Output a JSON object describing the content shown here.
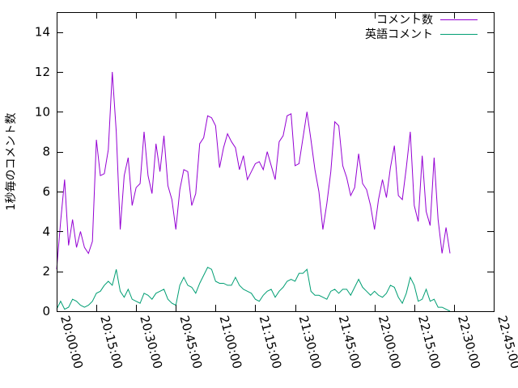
{
  "chart_data": {
    "type": "line",
    "xlabel": "",
    "ylabel": "1秒毎のコメント数",
    "ylim": [
      0,
      15
    ],
    "yticks": [
      0,
      2,
      4,
      6,
      8,
      10,
      12,
      14
    ],
    "xlim": [
      "20:00:00",
      "22:45:00"
    ],
    "xtick_labels": [
      "20:00:00",
      "20:15:00",
      "20:30:00",
      "20:45:00",
      "21:00:00",
      "21:15:00",
      "21:30:00",
      "21:45:00",
      "22:00:00",
      "22:15:00",
      "22:30:00",
      "22:45:00"
    ],
    "legend_position": "top-right",
    "grid": false,
    "series": [
      {
        "name": "コメント数",
        "color": "#9400d3",
        "points": [
          [
            "20:00:00",
            2.1
          ],
          [
            "20:01:30",
            4.5
          ],
          [
            "20:03:00",
            6.6
          ],
          [
            "20:04:30",
            3.3
          ],
          [
            "20:06:00",
            4.6
          ],
          [
            "20:07:30",
            3.2
          ],
          [
            "20:09:00",
            4.0
          ],
          [
            "20:10:30",
            3.2
          ],
          [
            "20:12:00",
            2.9
          ],
          [
            "20:13:30",
            3.5
          ],
          [
            "20:15:00",
            8.6
          ],
          [
            "20:16:30",
            6.8
          ],
          [
            "20:18:00",
            6.9
          ],
          [
            "20:19:30",
            8.1
          ],
          [
            "20:21:00",
            12.0
          ],
          [
            "20:22:30",
            9.0
          ],
          [
            "20:24:00",
            4.1
          ],
          [
            "20:25:30",
            6.8
          ],
          [
            "20:27:00",
            7.7
          ],
          [
            "20:28:30",
            5.3
          ],
          [
            "20:30:00",
            6.2
          ],
          [
            "20:31:30",
            6.4
          ],
          [
            "20:33:00",
            9.0
          ],
          [
            "20:34:30",
            6.8
          ],
          [
            "20:36:00",
            5.9
          ],
          [
            "20:37:30",
            8.4
          ],
          [
            "20:39:00",
            7.0
          ],
          [
            "20:40:30",
            8.8
          ],
          [
            "20:42:00",
            6.3
          ],
          [
            "20:43:30",
            5.6
          ],
          [
            "20:45:00",
            4.1
          ],
          [
            "20:46:30",
            6.1
          ],
          [
            "20:48:00",
            7.1
          ],
          [
            "20:49:30",
            7.0
          ],
          [
            "20:51:00",
            5.3
          ],
          [
            "20:52:30",
            5.9
          ],
          [
            "20:54:00",
            8.4
          ],
          [
            "20:55:30",
            8.7
          ],
          [
            "20:57:00",
            9.8
          ],
          [
            "20:58:30",
            9.7
          ],
          [
            "21:00:00",
            9.3
          ],
          [
            "21:01:30",
            7.2
          ],
          [
            "21:03:00",
            8.2
          ],
          [
            "21:04:30",
            8.9
          ],
          [
            "21:06:00",
            8.5
          ],
          [
            "21:07:30",
            8.2
          ],
          [
            "21:09:00",
            7.1
          ],
          [
            "21:10:30",
            7.8
          ],
          [
            "21:12:00",
            6.6
          ],
          [
            "21:13:30",
            7.0
          ],
          [
            "21:15:00",
            7.4
          ],
          [
            "21:16:30",
            7.5
          ],
          [
            "21:18:00",
            7.1
          ],
          [
            "21:19:30",
            8.0
          ],
          [
            "21:21:00",
            7.3
          ],
          [
            "21:22:30",
            6.6
          ],
          [
            "21:24:00",
            8.5
          ],
          [
            "21:25:30",
            8.8
          ],
          [
            "21:27:00",
            9.8
          ],
          [
            "21:28:30",
            9.9
          ],
          [
            "21:30:00",
            7.3
          ],
          [
            "21:31:30",
            7.4
          ],
          [
            "21:33:00",
            8.7
          ],
          [
            "21:34:30",
            10.0
          ],
          [
            "21:36:00",
            8.6
          ],
          [
            "21:37:30",
            7.1
          ],
          [
            "21:39:00",
            6.0
          ],
          [
            "21:40:30",
            4.1
          ],
          [
            "21:42:00",
            5.4
          ],
          [
            "21:43:30",
            7.0
          ],
          [
            "21:45:00",
            9.5
          ],
          [
            "21:46:30",
            9.3
          ],
          [
            "21:48:00",
            7.3
          ],
          [
            "21:49:30",
            6.7
          ],
          [
            "21:51:00",
            5.8
          ],
          [
            "21:52:30",
            6.2
          ],
          [
            "21:54:00",
            7.9
          ],
          [
            "21:55:30",
            6.4
          ],
          [
            "21:57:00",
            6.1
          ],
          [
            "21:58:30",
            5.3
          ],
          [
            "22:00:00",
            4.1
          ],
          [
            "22:01:30",
            5.6
          ],
          [
            "22:03:00",
            6.6
          ],
          [
            "22:04:30",
            5.7
          ],
          [
            "22:06:00",
            7.2
          ],
          [
            "22:07:30",
            8.3
          ],
          [
            "22:09:00",
            5.8
          ],
          [
            "22:10:30",
            5.6
          ],
          [
            "22:12:00",
            7.2
          ],
          [
            "22:13:30",
            9.0
          ],
          [
            "22:15:00",
            5.3
          ],
          [
            "22:16:30",
            4.5
          ],
          [
            "22:18:00",
            7.8
          ],
          [
            "22:19:30",
            5.0
          ],
          [
            "22:21:00",
            4.3
          ],
          [
            "22:22:30",
            7.7
          ],
          [
            "22:24:00",
            4.6
          ],
          [
            "22:25:30",
            2.9
          ],
          [
            "22:27:00",
            4.2
          ],
          [
            "22:28:30",
            2.9
          ]
        ]
      },
      {
        "name": "英語コメント",
        "color": "#009e73",
        "points": [
          [
            "20:00:00",
            0.1
          ],
          [
            "20:01:30",
            0.5
          ],
          [
            "20:03:00",
            0.1
          ],
          [
            "20:04:30",
            0.2
          ],
          [
            "20:06:00",
            0.6
          ],
          [
            "20:07:30",
            0.5
          ],
          [
            "20:09:00",
            0.3
          ],
          [
            "20:10:30",
            0.2
          ],
          [
            "20:12:00",
            0.3
          ],
          [
            "20:13:30",
            0.5
          ],
          [
            "20:15:00",
            0.9
          ],
          [
            "20:16:30",
            1.0
          ],
          [
            "20:18:00",
            1.3
          ],
          [
            "20:19:30",
            1.5
          ],
          [
            "20:21:00",
            1.3
          ],
          [
            "20:22:30",
            2.1
          ],
          [
            "20:24:00",
            1.0
          ],
          [
            "20:25:30",
            0.7
          ],
          [
            "20:27:00",
            1.1
          ],
          [
            "20:28:30",
            0.6
          ],
          [
            "20:30:00",
            0.5
          ],
          [
            "20:31:30",
            0.4
          ],
          [
            "20:33:00",
            0.9
          ],
          [
            "20:34:30",
            0.8
          ],
          [
            "20:36:00",
            0.6
          ],
          [
            "20:37:30",
            0.9
          ],
          [
            "20:39:00",
            1.0
          ],
          [
            "20:40:30",
            1.1
          ],
          [
            "20:42:00",
            0.6
          ],
          [
            "20:43:30",
            0.4
          ],
          [
            "20:45:00",
            0.3
          ],
          [
            "20:46:30",
            1.3
          ],
          [
            "20:48:00",
            1.7
          ],
          [
            "20:49:30",
            1.3
          ],
          [
            "20:51:00",
            1.2
          ],
          [
            "20:52:30",
            0.9
          ],
          [
            "20:54:00",
            1.4
          ],
          [
            "20:55:30",
            1.8
          ],
          [
            "20:57:00",
            2.2
          ],
          [
            "20:58:30",
            2.1
          ],
          [
            "21:00:00",
            1.5
          ],
          [
            "21:01:30",
            1.4
          ],
          [
            "21:03:00",
            1.4
          ],
          [
            "21:04:30",
            1.3
          ],
          [
            "21:06:00",
            1.3
          ],
          [
            "21:07:30",
            1.7
          ],
          [
            "21:09:00",
            1.3
          ],
          [
            "21:10:30",
            1.1
          ],
          [
            "21:12:00",
            1.0
          ],
          [
            "21:13:30",
            0.9
          ],
          [
            "21:15:00",
            0.6
          ],
          [
            "21:16:30",
            0.5
          ],
          [
            "21:18:00",
            0.8
          ],
          [
            "21:19:30",
            1.0
          ],
          [
            "21:21:00",
            1.1
          ],
          [
            "21:22:30",
            0.7
          ],
          [
            "21:24:00",
            1.0
          ],
          [
            "21:25:30",
            1.2
          ],
          [
            "21:27:00",
            1.5
          ],
          [
            "21:28:30",
            1.6
          ],
          [
            "21:30:00",
            1.5
          ],
          [
            "21:31:30",
            1.9
          ],
          [
            "21:33:00",
            1.9
          ],
          [
            "21:34:30",
            2.1
          ],
          [
            "21:36:00",
            1.0
          ],
          [
            "21:37:30",
            0.8
          ],
          [
            "21:39:00",
            0.8
          ],
          [
            "21:40:30",
            0.7
          ],
          [
            "21:42:00",
            0.6
          ],
          [
            "21:43:30",
            1.0
          ],
          [
            "21:45:00",
            1.1
          ],
          [
            "21:46:30",
            0.9
          ],
          [
            "21:48:00",
            1.1
          ],
          [
            "21:49:30",
            1.1
          ],
          [
            "21:51:00",
            0.8
          ],
          [
            "21:52:30",
            1.2
          ],
          [
            "21:54:00",
            1.6
          ],
          [
            "21:55:30",
            1.2
          ],
          [
            "21:57:00",
            1.0
          ],
          [
            "21:58:30",
            0.8
          ],
          [
            "22:00:00",
            1.0
          ],
          [
            "22:01:30",
            0.8
          ],
          [
            "22:03:00",
            0.7
          ],
          [
            "22:04:30",
            0.9
          ],
          [
            "22:06:00",
            1.3
          ],
          [
            "22:07:30",
            1.2
          ],
          [
            "22:09:00",
            0.7
          ],
          [
            "22:10:30",
            0.4
          ],
          [
            "22:12:00",
            0.9
          ],
          [
            "22:13:30",
            1.7
          ],
          [
            "22:15:00",
            1.3
          ],
          [
            "22:16:30",
            0.5
          ],
          [
            "22:18:00",
            0.6
          ],
          [
            "22:19:30",
            1.1
          ],
          [
            "22:21:00",
            0.5
          ],
          [
            "22:22:30",
            0.6
          ],
          [
            "22:24:00",
            0.2
          ],
          [
            "22:25:30",
            0.2
          ],
          [
            "22:27:00",
            0.1
          ],
          [
            "22:28:30",
            0.0
          ]
        ]
      }
    ]
  }
}
